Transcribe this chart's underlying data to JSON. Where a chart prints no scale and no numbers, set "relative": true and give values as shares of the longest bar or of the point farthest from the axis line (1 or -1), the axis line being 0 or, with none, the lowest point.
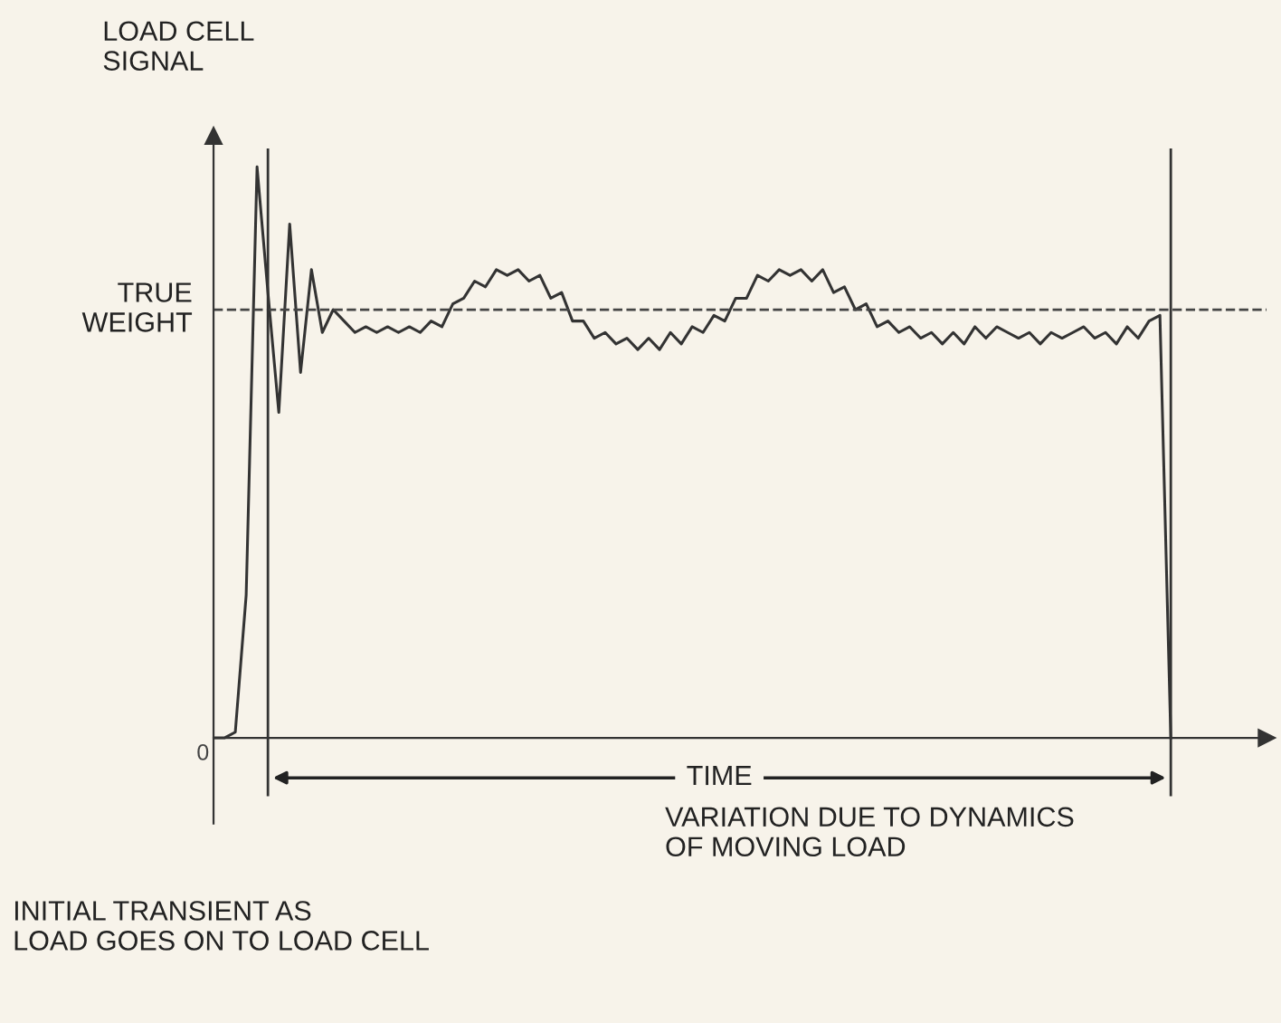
{
  "chart_data": {
    "type": "line",
    "relative": true,
    "ylabel": "LOAD CELL\nSIGNAL",
    "legend": false,
    "marker": "none",
    "line_style": "solid",
    "categories": [
      null,
      null,
      null,
      null,
      null,
      null,
      null,
      null,
      null,
      null,
      null,
      null,
      null,
      null,
      null,
      null,
      null,
      null,
      null,
      null,
      null,
      null,
      null,
      null,
      null,
      null,
      null,
      null,
      null,
      null,
      null,
      null,
      null,
      null,
      null,
      null,
      null,
      null,
      null,
      null,
      null,
      null,
      null,
      null,
      null,
      null,
      null,
      null,
      null,
      null,
      null,
      null,
      null,
      null,
      null,
      null,
      null,
      null,
      null,
      null,
      null,
      null,
      null,
      null,
      null,
      null,
      null,
      null,
      null,
      null,
      null,
      null,
      null,
      null,
      null,
      null,
      null,
      null,
      null,
      null,
      null,
      null,
      null,
      null,
      null,
      null,
      null,
      null,
      null
    ],
    "series": [
      {
        "color": "#333333",
        "values": [
          0,
          0,
          0.01,
          0.25,
          1,
          0.78,
          0.57,
          0.9,
          0.64,
          0.82,
          0.71,
          0.75,
          0.73,
          0.71,
          0.72,
          0.71,
          0.72,
          0.71,
          0.72,
          0.71,
          0.73,
          0.72,
          0.76,
          0.77,
          0.8,
          0.79,
          0.82,
          0.81,
          0.82,
          0.8,
          0.81,
          0.77,
          0.78,
          0.73,
          0.73,
          0.7,
          0.71,
          0.69,
          0.7,
          0.68,
          0.7,
          0.68,
          0.71,
          0.69,
          0.72,
          0.71,
          0.74,
          0.73,
          0.77,
          0.77,
          0.81,
          0.8,
          0.82,
          0.81,
          0.82,
          0.8,
          0.82,
          0.78,
          0.79,
          0.75,
          0.76,
          0.72,
          0.73,
          0.71,
          0.72,
          0.7,
          0.71,
          0.69,
          0.71,
          0.69,
          0.72,
          0.7,
          0.72,
          0.71,
          0.7,
          0.71,
          0.69,
          0.71,
          0.7,
          0.71,
          0.72,
          0.7,
          0.71,
          0.69,
          0.72,
          0.7,
          0.73,
          0.74,
          0
        ]
      }
    ],
    "ref_lines": [
      {
        "axis": "y",
        "value": 0.75,
        "label": "TRUE\nWEIGHT",
        "line_style": "dashed",
        "color": "#444444"
      }
    ],
    "annotations": [
      "0",
      "TIME",
      "VARIATION DUE TO DYNAMICS\nOF MOVING LOAD",
      "INITIAL TRANSIENT AS\nLOAD GOES ON TO LOAD CELL"
    ]
  }
}
